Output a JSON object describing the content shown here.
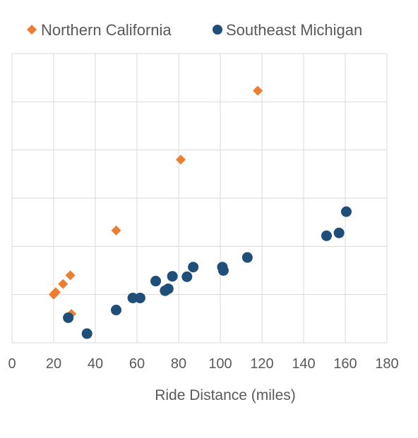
{
  "chart_data": {
    "type": "scatter",
    "xlabel": "Ride Distance (miles)",
    "ylabel": "",
    "xlim": [
      0,
      180
    ],
    "x_ticks": [
      0,
      20,
      40,
      60,
      80,
      100,
      120,
      140,
      160,
      180
    ],
    "ylim": [
      0,
      6
    ],
    "y_gridlines": [
      0,
      1,
      2,
      3,
      4,
      5,
      6
    ],
    "y_tick_labels_shown": false,
    "grid": true,
    "legend": "top",
    "series": [
      {
        "name": "Northern California",
        "marker": "diamond",
        "color": "#ED7D31",
        "points": [
          [
            20,
            1.0
          ],
          [
            21,
            1.05
          ],
          [
            24.5,
            1.22
          ],
          [
            28,
            1.4
          ],
          [
            28.5,
            0.6
          ],
          [
            50,
            2.33
          ],
          [
            81,
            3.8
          ],
          [
            118,
            5.23
          ]
        ]
      },
      {
        "name": "Southeast Michigan",
        "marker": "circle",
        "color": "#1F4E79",
        "points": [
          [
            27,
            0.52
          ],
          [
            36,
            0.19
          ],
          [
            50,
            0.68
          ],
          [
            58,
            0.93
          ],
          [
            61.5,
            0.93
          ],
          [
            69,
            1.28
          ],
          [
            73.5,
            1.08
          ],
          [
            75,
            1.12
          ],
          [
            77,
            1.38
          ],
          [
            84,
            1.37
          ],
          [
            87,
            1.57
          ],
          [
            101,
            1.57
          ],
          [
            101.5,
            1.5
          ],
          [
            113,
            1.77
          ],
          [
            151,
            2.22
          ],
          [
            157,
            2.28
          ],
          [
            160.5,
            2.72
          ]
        ]
      }
    ]
  }
}
